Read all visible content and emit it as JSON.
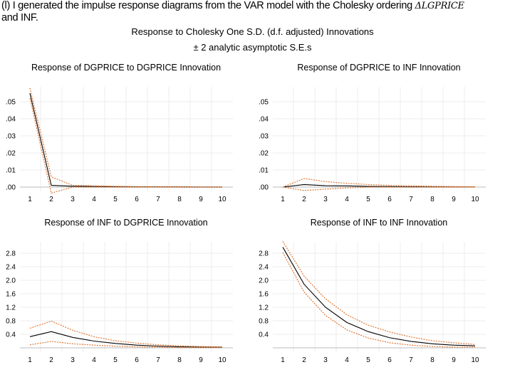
{
  "document": {
    "intro_text": "(l) I generated the impulse response diagrams from the VAR model with the Cholesky ordering",
    "intro_math": "ΔLGPRICE",
    "intro_text_end": "and INF.",
    "figure_title": "Response to Cholesky One S.D. (d.f. adjusted) Innovations",
    "figure_subtitle": "± 2 analytic asymptotic S.E.s"
  },
  "colors": {
    "response": "#000000",
    "bands": "#e07b39",
    "grid": "#ececec",
    "axis": "#bbbbbb"
  },
  "chart_data": [
    {
      "type": "line",
      "title": "Response of DGPRICE to DGPRICE Innovation",
      "x": [
        1,
        2,
        3,
        4,
        5,
        6,
        7,
        8,
        9,
        10
      ],
      "xtick_labels": [
        "1",
        "2",
        "3",
        "4",
        "5",
        "6",
        "7",
        "8",
        "9",
        "10"
      ],
      "ytick_labels": [
        ".00",
        ".01",
        ".02",
        ".03",
        ".04",
        ".05"
      ],
      "yticks": [
        0,
        0.01,
        0.02,
        0.03,
        0.04,
        0.05
      ],
      "ylim": [
        0,
        0.0588
      ],
      "grid": true,
      "series": [
        {
          "role": "response",
          "values": [
            0.055,
            0.001,
            0.0005,
            0.0003,
            0.0002,
            0.0001,
            0.0001,
            0.0001,
            0.0,
            0.0
          ]
        },
        {
          "role": "upper",
          "values": [
            0.058,
            0.006,
            0.001,
            0.0008,
            0.0005,
            0.0003,
            0.0002,
            0.0002,
            0.0001,
            0.0001
          ]
        },
        {
          "role": "lower",
          "values": [
            0.052,
            -0.0035,
            0.0,
            0.0,
            0.0,
            0.0,
            0.0,
            0.0,
            0.0,
            0.0
          ]
        }
      ]
    },
    {
      "type": "line",
      "title": "Response of DGPRICE to INF Innovation",
      "x": [
        1,
        2,
        3,
        4,
        5,
        6,
        7,
        8,
        9,
        10
      ],
      "xtick_labels": [
        "1",
        "2",
        "3",
        "4",
        "5",
        "6",
        "7",
        "8",
        "9",
        "10"
      ],
      "ytick_labels": [
        ".00",
        ".01",
        ".02",
        ".03",
        ".04",
        ".05"
      ],
      "yticks": [
        0,
        0.01,
        0.02,
        0.03,
        0.04,
        0.05
      ],
      "ylim": [
        0,
        0.0588
      ],
      "grid": true,
      "series": [
        {
          "role": "response",
          "values": [
            0.0,
            0.0015,
            0.0008,
            0.0007,
            0.0004,
            0.0003,
            0.0002,
            0.0001,
            0.0001,
            0.0001
          ]
        },
        {
          "role": "upper",
          "values": [
            0.0,
            0.005,
            0.0032,
            0.0022,
            0.0015,
            0.001,
            0.0008,
            0.0005,
            0.0003,
            0.0002
          ]
        },
        {
          "role": "lower",
          "values": [
            0.0,
            -0.002,
            -0.0012,
            -0.0005,
            0.0,
            0.0,
            0.0,
            0.0,
            0.0,
            0.0
          ]
        }
      ]
    },
    {
      "type": "line",
      "title": "Response of INF to DGPRICE Innovation",
      "x": [
        1,
        2,
        3,
        4,
        5,
        6,
        7,
        8,
        9,
        10
      ],
      "xtick_labels": [
        "1",
        "2",
        "3",
        "4",
        "5",
        "6",
        "7",
        "8",
        "9",
        "10"
      ],
      "ytick_labels": [
        "0.4",
        "0.8",
        "1.2",
        "1.6",
        "2.0",
        "2.4",
        "2.8"
      ],
      "yticks": [
        0.4,
        0.8,
        1.2,
        1.6,
        2.0,
        2.4,
        2.8
      ],
      "ylim": [
        0,
        3.15
      ],
      "grid": true,
      "series": [
        {
          "role": "response",
          "values": [
            0.33,
            0.48,
            0.31,
            0.2,
            0.13,
            0.08,
            0.05,
            0.03,
            0.02,
            0.02
          ]
        },
        {
          "role": "upper",
          "values": [
            0.58,
            0.79,
            0.52,
            0.33,
            0.21,
            0.14,
            0.09,
            0.06,
            0.04,
            0.03
          ]
        },
        {
          "role": "lower",
          "values": [
            0.09,
            0.19,
            0.12,
            0.08,
            0.05,
            0.03,
            0.02,
            0.01,
            0.01,
            0.01
          ]
        }
      ]
    },
    {
      "type": "line",
      "title": "Response of INF to INF Innovation",
      "x": [
        1,
        2,
        3,
        4,
        5,
        6,
        7,
        8,
        9,
        10
      ],
      "xtick_labels": [
        "1",
        "2",
        "3",
        "4",
        "5",
        "6",
        "7",
        "8",
        "9",
        "10"
      ],
      "ytick_labels": [
        "0.4",
        "0.8",
        "1.2",
        "1.6",
        "2.0",
        "2.4",
        "2.8"
      ],
      "yticks": [
        0.4,
        0.8,
        1.2,
        1.6,
        2.0,
        2.4,
        2.8
      ],
      "ylim": [
        0,
        3.15
      ],
      "grid": true,
      "series": [
        {
          "role": "response",
          "values": [
            2.98,
            1.88,
            1.2,
            0.75,
            0.48,
            0.3,
            0.19,
            0.12,
            0.08,
            0.06
          ]
        },
        {
          "role": "upper",
          "values": [
            3.15,
            2.12,
            1.45,
            0.98,
            0.67,
            0.47,
            0.32,
            0.21,
            0.15,
            0.1
          ]
        },
        {
          "role": "lower",
          "values": [
            2.82,
            1.65,
            0.96,
            0.53,
            0.29,
            0.15,
            0.08,
            0.04,
            0.02,
            0.02
          ]
        }
      ]
    }
  ]
}
